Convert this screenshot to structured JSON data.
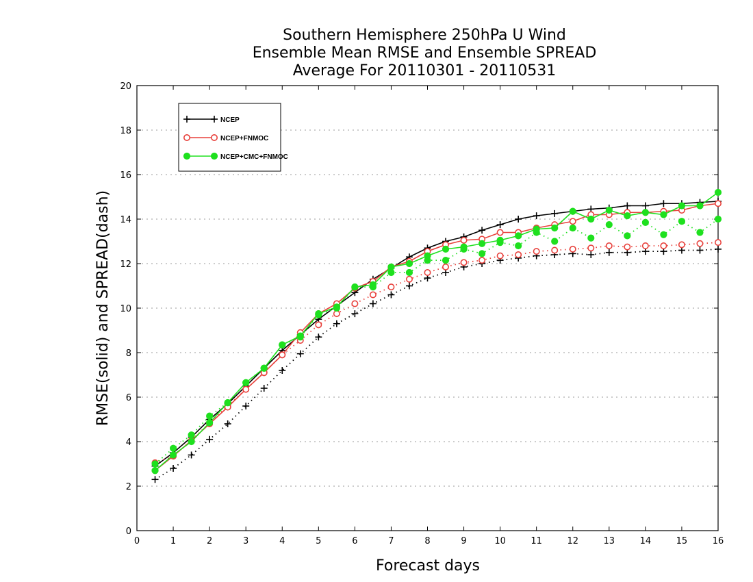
{
  "chart_data": {
    "type": "line",
    "title": [
      "Southern Hemisphere 250hPa U Wind",
      "Ensemble Mean RMSE and Ensemble SPREAD",
      "Average For 20110301 - 20110531"
    ],
    "xlabel": "Forecast days",
    "ylabel": "RMSE(solid) and SPREAD(dash)",
    "xlim": [
      0,
      16
    ],
    "ylim": [
      0,
      20
    ],
    "xticks": [
      0,
      1,
      2,
      3,
      4,
      5,
      6,
      7,
      8,
      9,
      10,
      11,
      12,
      13,
      14,
      15,
      16
    ],
    "yticks": [
      0,
      2,
      4,
      6,
      8,
      10,
      12,
      14,
      16,
      18,
      20
    ],
    "grid": "horizontal dotted",
    "legend_position": "top-left",
    "x": [
      0.5,
      1,
      1.5,
      2,
      2.5,
      3,
      3.5,
      4,
      4.5,
      5,
      5.5,
      6,
      6.5,
      7,
      7.5,
      8,
      8.5,
      9,
      9.5,
      10,
      10.5,
      11,
      11.5,
      12,
      12.5,
      13,
      13.5,
      14,
      14.5,
      15,
      15.5,
      16
    ],
    "series": [
      {
        "name": "NCEP",
        "color": "#000000",
        "marker": "plus",
        "rmse": [
          2.9,
          3.5,
          4.2,
          5.0,
          5.7,
          6.5,
          7.3,
          8.1,
          8.8,
          9.5,
          10.1,
          10.7,
          11.3,
          11.8,
          12.3,
          12.7,
          13.0,
          13.2,
          13.5,
          13.75,
          14.0,
          14.15,
          14.25,
          14.35,
          14.45,
          14.5,
          14.6,
          14.6,
          14.7,
          14.7,
          14.75,
          14.8
        ],
        "spread": [
          2.3,
          2.8,
          3.4,
          4.1,
          4.8,
          5.6,
          6.4,
          7.2,
          7.95,
          8.7,
          9.3,
          9.75,
          10.2,
          10.6,
          11.0,
          11.35,
          11.6,
          11.85,
          12.0,
          12.15,
          12.25,
          12.35,
          12.4,
          12.45,
          12.4,
          12.5,
          12.5,
          12.55,
          12.55,
          12.6,
          12.6,
          12.65
        ]
      },
      {
        "name": "NCEP+FNMOC",
        "color": "#e8413c",
        "marker": "circle-open",
        "rmse": [
          2.7,
          3.35,
          4.05,
          4.8,
          5.55,
          6.35,
          7.1,
          7.9,
          8.9,
          9.75,
          10.2,
          10.9,
          11.2,
          11.85,
          12.1,
          12.55,
          12.85,
          13.05,
          13.1,
          13.4,
          13.4,
          13.6,
          13.75,
          13.9,
          14.2,
          14.2,
          14.3,
          14.3,
          14.35,
          14.4,
          14.6,
          14.7
        ],
        "spread": [
          3.05,
          3.35,
          4.05,
          4.85,
          5.6,
          6.35,
          7.1,
          7.9,
          8.55,
          9.25,
          9.75,
          10.2,
          10.6,
          10.95,
          11.3,
          11.6,
          11.85,
          12.05,
          12.15,
          12.35,
          12.4,
          12.55,
          12.6,
          12.65,
          12.7,
          12.8,
          12.75,
          12.8,
          12.8,
          12.85,
          12.9,
          12.95
        ]
      },
      {
        "name": "NCEP+CMC+FNMOC",
        "color": "#1ee01e",
        "marker": "circle-filled",
        "rmse": [
          2.7,
          3.4,
          4.0,
          4.85,
          5.75,
          6.65,
          7.3,
          8.35,
          8.75,
          9.75,
          10.05,
          10.95,
          11.05,
          11.85,
          12.0,
          12.35,
          12.65,
          12.75,
          12.9,
          13.05,
          13.25,
          13.55,
          13.6,
          14.35,
          14.0,
          14.4,
          14.15,
          14.3,
          14.2,
          14.6,
          14.6,
          15.2
        ],
        "spread": [
          3.0,
          3.7,
          4.3,
          5.15,
          5.75,
          6.65,
          7.3,
          8.35,
          8.7,
          9.7,
          10.0,
          10.95,
          10.95,
          11.6,
          11.6,
          12.15,
          12.15,
          12.65,
          12.45,
          12.95,
          12.8,
          13.4,
          13.0,
          13.6,
          13.15,
          13.75,
          13.25,
          13.85,
          13.3,
          13.9,
          13.4,
          14.0
        ]
      }
    ]
  }
}
